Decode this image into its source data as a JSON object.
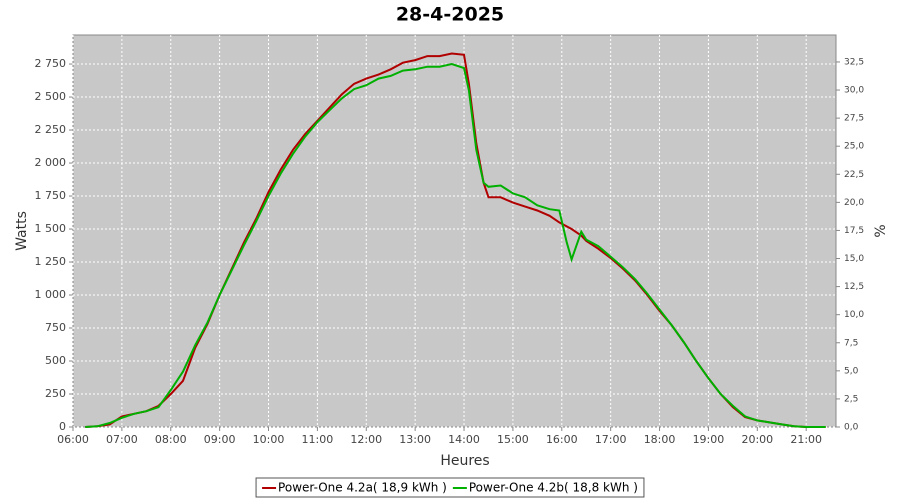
{
  "chart_data": {
    "type": "line",
    "title": "28-4-2025",
    "xlabel": "Heures",
    "ylabel": "Watts",
    "y2label": "%",
    "grid": true,
    "legend": "bottom",
    "background": "#c8c8c8",
    "x": [
      6.25,
      6.5,
      6.75,
      7,
      7.25,
      7.5,
      7.75,
      8,
      8.25,
      8.5,
      8.75,
      9,
      9.25,
      9.5,
      9.75,
      10,
      10.25,
      10.5,
      10.75,
      11,
      11.25,
      11.5,
      11.75,
      12,
      12.25,
      12.5,
      12.75,
      13,
      13.25,
      13.5,
      13.75,
      14,
      14.1,
      14.25,
      14.4,
      14.5,
      14.75,
      15,
      15.25,
      15.5,
      15.75,
      15.95,
      16.1,
      16.2,
      16.4,
      16.5,
      16.75,
      17,
      17.25,
      17.5,
      17.75,
      18,
      18.25,
      18.5,
      18.75,
      19,
      19.25,
      19.5,
      19.75,
      20,
      20.25,
      20.5,
      20.75,
      21,
      21.4
    ],
    "series": [
      {
        "name": "Power-One 4.2a( 18,9 kWh )",
        "color": "#b00000",
        "values": [
          0,
          5,
          20,
          80,
          100,
          120,
          160,
          250,
          350,
          600,
          780,
          1000,
          1200,
          1400,
          1580,
          1780,
          1950,
          2100,
          2220,
          2320,
          2420,
          2520,
          2600,
          2640,
          2670,
          2710,
          2760,
          2780,
          2810,
          2810,
          2830,
          2820,
          2600,
          2150,
          1850,
          1740,
          1740,
          1700,
          1670,
          1640,
          1600,
          1550,
          1520,
          1500,
          1450,
          1410,
          1350,
          1280,
          1200,
          1110,
          1000,
          880,
          770,
          640,
          500,
          370,
          250,
          150,
          75,
          50,
          35,
          20,
          5,
          0,
          0
        ]
      },
      {
        "name": "Power-One 4.2b( 18,8 kWh )",
        "color": "#00b000",
        "values": [
          0,
          5,
          30,
          70,
          100,
          120,
          150,
          280,
          420,
          620,
          790,
          1000,
          1190,
          1380,
          1560,
          1750,
          1920,
          2070,
          2200,
          2310,
          2400,
          2490,
          2560,
          2590,
          2640,
          2660,
          2700,
          2710,
          2730,
          2730,
          2750,
          2720,
          2550,
          2100,
          1850,
          1820,
          1830,
          1770,
          1740,
          1680,
          1650,
          1640,
          1400,
          1270,
          1480,
          1420,
          1370,
          1290,
          1210,
          1120,
          1010,
          890,
          770,
          640,
          500,
          370,
          250,
          160,
          80,
          50,
          35,
          20,
          5,
          0,
          0
        ]
      }
    ],
    "xlim": [
      6,
      21.61
    ],
    "xticks": [
      {
        "value": 6,
        "label": "06:00"
      },
      {
        "value": 7,
        "label": "07:00"
      },
      {
        "value": 8,
        "label": "08:00"
      },
      {
        "value": 9,
        "label": "09:00"
      },
      {
        "value": 10,
        "label": "10:00"
      },
      {
        "value": 11,
        "label": "11:00"
      },
      {
        "value": 12,
        "label": "12:00"
      },
      {
        "value": 13,
        "label": "13:00"
      },
      {
        "value": 14,
        "label": "14:00"
      },
      {
        "value": 15,
        "label": "15:00"
      },
      {
        "value": 16,
        "label": "16:00"
      },
      {
        "value": 17,
        "label": "17:00"
      },
      {
        "value": 18,
        "label": "18:00"
      },
      {
        "value": 19,
        "label": "19:00"
      },
      {
        "value": 20,
        "label": "20:00"
      },
      {
        "value": 21,
        "label": "21:00"
      }
    ],
    "ylim": [
      0,
      2970
    ],
    "yticks": [
      0,
      250,
      500,
      750,
      {
        "value": 1000,
        "label": "1 000"
      },
      {
        "value": 1250,
        "label": "1 250"
      },
      {
        "value": 1500,
        "label": "1 500"
      },
      {
        "value": 1750,
        "label": "1 750"
      },
      {
        "value": 2000,
        "label": "2 000"
      },
      {
        "value": 2250,
        "label": "2 250"
      },
      {
        "value": 2500,
        "label": "2 500"
      },
      {
        "value": 2750,
        "label": "2 750"
      }
    ],
    "y2lim": [
      0,
      34.9
    ],
    "y2ticks": [
      {
        "value": 0,
        "label": "0,0"
      },
      {
        "value": 2.5,
        "label": "2,5"
      },
      {
        "value": 5,
        "label": "5,0"
      },
      {
        "value": 7.5,
        "label": "7,5"
      },
      {
        "value": 10,
        "label": "10,0"
      },
      {
        "value": 12.5,
        "label": "12,5"
      },
      {
        "value": 15,
        "label": "15,0"
      },
      {
        "value": 17.5,
        "label": "17,5"
      },
      {
        "value": 20,
        "label": "20,0"
      },
      {
        "value": 22.5,
        "label": "22,5"
      },
      {
        "value": 25,
        "label": "25,0"
      },
      {
        "value": 27.5,
        "label": "27,5"
      },
      {
        "value": 30,
        "label": "30,0"
      },
      {
        "value": 32.5,
        "label": "32,5"
      }
    ]
  }
}
